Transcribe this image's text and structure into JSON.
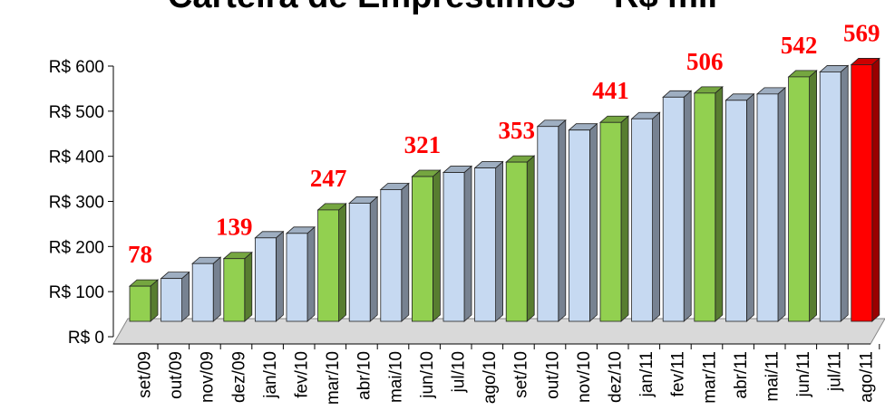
{
  "chart_data": {
    "type": "bar3d",
    "title": "Carteira de Empréstimos – R$ mil",
    "categories": [
      "set/09",
      "out/09",
      "nov/09",
      "dez/09",
      "jan/10",
      "fev/10",
      "mar/10",
      "abr/10",
      "mai/10",
      "jun/10",
      "jul/10",
      "ago/10",
      "set/10",
      "out/10",
      "nov/10",
      "dez/10",
      "jan/11",
      "fev/11",
      "mar/11",
      "abr/11",
      "mai/11",
      "jun/11",
      "jul/11",
      "ago/11"
    ],
    "values": [
      78,
      95,
      128,
      139,
      185,
      195,
      247,
      262,
      292,
      321,
      330,
      340,
      353,
      432,
      424,
      441,
      449,
      497,
      506,
      490,
      504,
      542,
      553,
      569
    ],
    "value_labels": [
      "78",
      null,
      null,
      "139",
      null,
      null,
      "247",
      null,
      null,
      "321",
      null,
      null,
      "353",
      null,
      null,
      "441",
      null,
      null,
      "506",
      null,
      null,
      "542",
      null,
      "569"
    ],
    "colors": [
      "#92d050",
      "#c6d9f1",
      "#c6d9f1",
      "#92d050",
      "#c6d9f1",
      "#c6d9f1",
      "#92d050",
      "#c6d9f1",
      "#c6d9f1",
      "#92d050",
      "#c6d9f1",
      "#c6d9f1",
      "#92d050",
      "#c6d9f1",
      "#c6d9f1",
      "#92d050",
      "#c6d9f1",
      "#c6d9f1",
      "#92d050",
      "#c6d9f1",
      "#c6d9f1",
      "#92d050",
      "#c6d9f1",
      "#ff0000"
    ],
    "ylim": [
      0,
      600
    ],
    "yticks": [
      {
        "value": 0,
        "label": "R$ 0"
      },
      {
        "value": 100,
        "label": "R$ 100"
      },
      {
        "value": 200,
        "label": "R$ 200"
      },
      {
        "value": 300,
        "label": "R$ 300"
      },
      {
        "value": 400,
        "label": "R$ 400"
      },
      {
        "value": 500,
        "label": "R$ 500"
      },
      {
        "value": 600,
        "label": "R$ 600"
      }
    ]
  }
}
